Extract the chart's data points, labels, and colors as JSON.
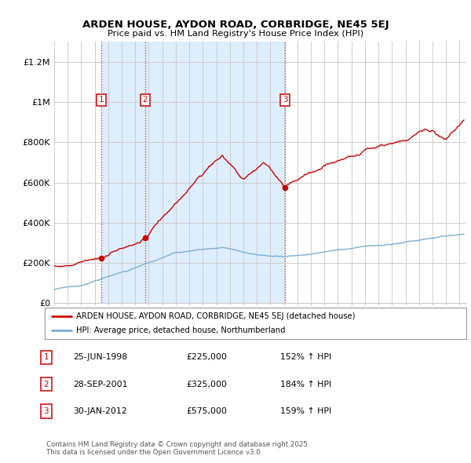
{
  "title1": "ARDEN HOUSE, AYDON ROAD, CORBRIDGE, NE45 5EJ",
  "title2": "Price paid vs. HM Land Registry's House Price Index (HPI)",
  "ylabel_ticks": [
    "£0",
    "£200K",
    "£400K",
    "£600K",
    "£800K",
    "£1M",
    "£1.2M"
  ],
  "ytick_values": [
    0,
    200000,
    400000,
    600000,
    800000,
    1000000,
    1200000
  ],
  "ylim": [
    0,
    1300000
  ],
  "xlim_start": 1995.0,
  "xlim_end": 2025.5,
  "legend_line1": "ARDEN HOUSE, AYDON ROAD, CORBRIDGE, NE45 5EJ (detached house)",
  "legend_line2": "HPI: Average price, detached house, Northumberland",
  "line1_color": "#cc0000",
  "line2_color": "#7aaed6",
  "shade_color": "#ddeeff",
  "sale_markers": [
    {
      "label": "1",
      "date_x": 1998.48,
      "price": 225000
    },
    {
      "label": "2",
      "date_x": 2001.74,
      "price": 325000
    },
    {
      "label": "3",
      "date_x": 2012.08,
      "price": 575000
    }
  ],
  "table_rows": [
    {
      "num": "1",
      "date": "25-JUN-1998",
      "price": "£225,000",
      "hpi": "152% ↑ HPI"
    },
    {
      "num": "2",
      "date": "28-SEP-2001",
      "price": "£325,000",
      "hpi": "184% ↑ HPI"
    },
    {
      "num": "3",
      "date": "30-JAN-2012",
      "price": "£575,000",
      "hpi": "159% ↑ HPI"
    }
  ],
  "footnote": "Contains HM Land Registry data © Crown copyright and database right 2025.\nThis data is licensed under the Open Government Licence v3.0.",
  "bg_color": "#ffffff",
  "grid_color": "#cccccc",
  "title_color": "#000000"
}
